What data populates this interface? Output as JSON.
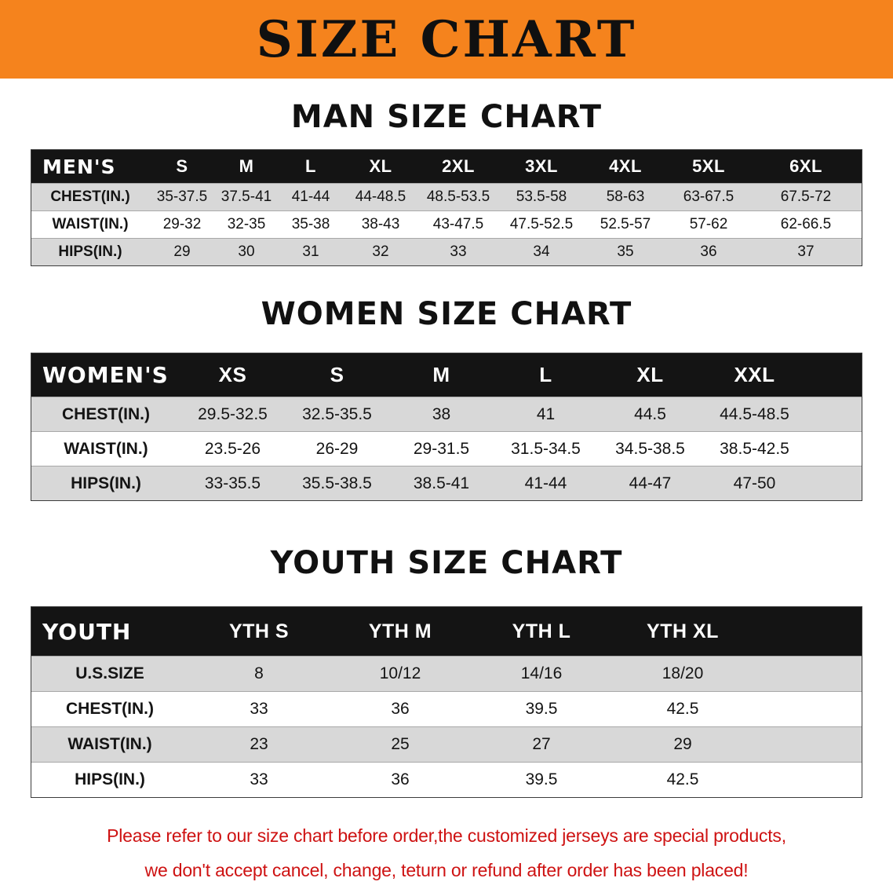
{
  "banner": {
    "title": "SIZE CHART"
  },
  "colors": {
    "banner_orange": "#F5831D",
    "header_black": "#141414",
    "row_gray": "#D8D8D8",
    "disclaimer_red": "#CE1212"
  },
  "sections": [
    {
      "id": "men",
      "heading": "MAN SIZE CHART",
      "table": {
        "header": [
          "MEN'S",
          "S",
          "M",
          "L",
          "XL",
          "2XL",
          "3XL",
          "4XL",
          "5XL",
          "6XL"
        ],
        "rows": [
          [
            "CHEST(IN.)",
            "35-37.5",
            "37.5-41",
            "41-44",
            "44-48.5",
            "48.5-53.5",
            "53.5-58",
            "58-63",
            "63-67.5",
            "67.5-72"
          ],
          [
            "WAIST(IN.)",
            "29-32",
            "32-35",
            "35-38",
            "38-43",
            "43-47.5",
            "47.5-52.5",
            "52.5-57",
            "57-62",
            "62-66.5"
          ],
          [
            "HIPS(IN.)",
            "29",
            "30",
            "31",
            "32",
            "33",
            "34",
            "35",
            "36",
            "37"
          ]
        ]
      }
    },
    {
      "id": "women",
      "heading": "WOMEN SIZE CHART",
      "table": {
        "header": [
          "WOMEN'S",
          "XS",
          "S",
          "M",
          "L",
          "XL",
          "XXL"
        ],
        "rows": [
          [
            "CHEST(IN.)",
            "29.5-32.5",
            "32.5-35.5",
            "38",
            "41",
            "44.5",
            "44.5-48.5"
          ],
          [
            "WAIST(IN.)",
            "23.5-26",
            "26-29",
            "29-31.5",
            "31.5-34.5",
            "34.5-38.5",
            "38.5-42.5"
          ],
          [
            "HIPS(IN.)",
            "33-35.5",
            "35.5-38.5",
            "38.5-41",
            "41-44",
            "44-47",
            "47-50"
          ]
        ]
      }
    },
    {
      "id": "youth",
      "heading": "YOUTH SIZE CHART",
      "table": {
        "header": [
          "YOUTH",
          "YTH S",
          "YTH M",
          "YTH L",
          "YTH XL"
        ],
        "rows": [
          [
            "U.S.SIZE",
            "8",
            "10/12",
            "14/16",
            "18/20"
          ],
          [
            "CHEST(IN.)",
            "33",
            "36",
            "39.5",
            "42.5"
          ],
          [
            "WAIST(IN.)",
            "23",
            "25",
            "27",
            "29"
          ],
          [
            "HIPS(IN.)",
            "33",
            "36",
            "39.5",
            "42.5"
          ]
        ]
      }
    }
  ],
  "disclaimer": {
    "lines": [
      "Please refer to our size chart before order,the customized jerseys are special products,",
      "we don't accept cancel, change, teturn or refund after order has been placed!"
    ]
  }
}
